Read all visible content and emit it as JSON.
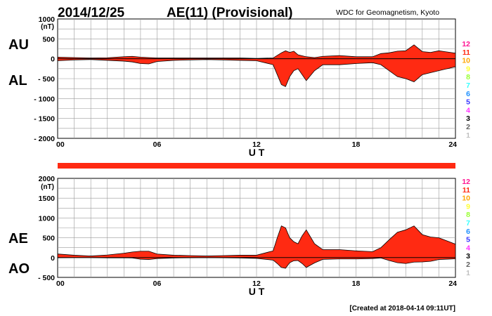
{
  "header": {
    "date": "2014/12/25",
    "title": "AE(11) (Provisional)",
    "source": "WDC for Geomagnetism, Kyoto"
  },
  "footer": {
    "created": "[Created at 2018-04-14 09:11UT]"
  },
  "colors": {
    "fill": "#ff2a12",
    "grid": "#9a9a9a",
    "outline": "#000000",
    "bar": "#ff2a12"
  },
  "station_legend": [
    {
      "label": "12",
      "color": "#ff1493"
    },
    {
      "label": "11",
      "color": "#ff2a12"
    },
    {
      "label": "10",
      "color": "#ffa500"
    },
    {
      "label": "9",
      "color": "#ffff33"
    },
    {
      "label": "8",
      "color": "#99ff33"
    },
    {
      "label": "7",
      "color": "#33ffff"
    },
    {
      "label": "6",
      "color": "#1e90ff"
    },
    {
      "label": "5",
      "color": "#3333ff"
    },
    {
      "label": "4",
      "color": "#ff33ff"
    },
    {
      "label": "3",
      "color": "#000000"
    },
    {
      "label": "2",
      "color": "#606060"
    },
    {
      "label": "1",
      "color": "#c0c0c0"
    }
  ],
  "chart_data": [
    {
      "type": "area",
      "unit": "(nT)",
      "xlabel": "U T",
      "xlim": [
        0,
        24
      ],
      "xticks": [
        "00",
        "06",
        "12",
        "18",
        "24"
      ],
      "ylim": [
        -2000,
        1000
      ],
      "yticks": [
        "1000",
        "500",
        "0",
        "- 500",
        "- 1000",
        "- 1500",
        "- 2000"
      ],
      "grid": true,
      "series": [
        {
          "name": "AU",
          "x": [
            0,
            1,
            2,
            3,
            4,
            4.5,
            5,
            5.5,
            6,
            7,
            8,
            9,
            10,
            11,
            12,
            13,
            13.5,
            13.75,
            14,
            14.25,
            14.5,
            15,
            15.5,
            16,
            17,
            18,
            19,
            19.5,
            20,
            20.5,
            21,
            21.5,
            22,
            22.5,
            23,
            23.5,
            24
          ],
          "y": [
            40,
            30,
            20,
            25,
            50,
            60,
            40,
            30,
            20,
            20,
            20,
            20,
            20,
            20,
            10,
            20,
            150,
            200,
            160,
            190,
            100,
            50,
            30,
            60,
            80,
            50,
            50,
            130,
            150,
            190,
            200,
            350,
            180,
            160,
            200,
            170,
            140
          ]
        },
        {
          "name": "AL",
          "x": [
            0,
            1,
            2,
            3,
            4,
            4.5,
            5,
            5.5,
            6,
            7,
            8,
            9,
            10,
            11,
            12,
            13,
            13.25,
            13.5,
            13.75,
            14,
            14.25,
            14.5,
            14.75,
            15,
            15.5,
            16,
            17,
            18,
            19,
            19.5,
            20,
            20.5,
            21,
            21.5,
            22,
            22.5,
            23,
            23.5,
            24
          ],
          "y": [
            -50,
            -30,
            -20,
            -40,
            -60,
            -80,
            -120,
            -130,
            -70,
            -40,
            -30,
            -20,
            -30,
            -40,
            -50,
            -150,
            -400,
            -650,
            -700,
            -450,
            -300,
            -250,
            -400,
            -550,
            -300,
            -150,
            -150,
            -120,
            -100,
            -150,
            -300,
            -450,
            -500,
            -580,
            -400,
            -350,
            -300,
            -250,
            -200
          ]
        }
      ],
      "band_labels": [
        "AU",
        "AL"
      ]
    },
    {
      "type": "area",
      "unit": "(nT)",
      "xlabel": "U T",
      "xlim": [
        0,
        24
      ],
      "xticks": [
        "00",
        "06",
        "12",
        "18",
        "24"
      ],
      "ylim": [
        -500,
        2000
      ],
      "yticks": [
        "2000",
        "1500",
        "1000",
        "500",
        "0",
        "- 500"
      ],
      "grid": true,
      "series": [
        {
          "name": "AE",
          "x": [
            0,
            1,
            2,
            3,
            4,
            4.5,
            5,
            5.5,
            6,
            7,
            8,
            9,
            10,
            11,
            12,
            13,
            13.25,
            13.5,
            13.75,
            14,
            14.25,
            14.5,
            14.75,
            15,
            15.5,
            16,
            17,
            18,
            19,
            19.5,
            20,
            20.5,
            21,
            21.5,
            22,
            22.5,
            23,
            23.5,
            24
          ],
          "y": [
            90,
            60,
            40,
            65,
            110,
            140,
            160,
            160,
            90,
            60,
            50,
            40,
            50,
            60,
            60,
            170,
            500,
            800,
            750,
            500,
            400,
            350,
            550,
            700,
            350,
            200,
            200,
            170,
            150,
            250,
            450,
            640,
            700,
            800,
            580,
            520,
            500,
            420,
            340
          ]
        },
        {
          "name": "AO",
          "x": [
            0,
            1,
            2,
            3,
            4,
            4.5,
            5,
            5.5,
            6,
            7,
            8,
            9,
            10,
            11,
            12,
            13,
            13.25,
            13.5,
            13.75,
            14,
            14.25,
            14.5,
            14.75,
            15,
            15.5,
            16,
            17,
            18,
            19,
            19.5,
            20,
            20.5,
            21,
            21.5,
            22,
            22.5,
            23,
            23.5,
            24
          ],
          "y": [
            -5,
            0,
            0,
            -8,
            -5,
            -10,
            -40,
            -50,
            -25,
            -10,
            -5,
            0,
            -5,
            -10,
            -20,
            -65,
            -150,
            -250,
            -270,
            -130,
            -80,
            -75,
            -150,
            -250,
            -135,
            -45,
            -35,
            -35,
            -25,
            -10,
            -75,
            -130,
            -150,
            -115,
            -110,
            -95,
            -50,
            -40,
            -30
          ]
        }
      ],
      "band_labels": [
        "AE",
        "AO"
      ]
    }
  ]
}
